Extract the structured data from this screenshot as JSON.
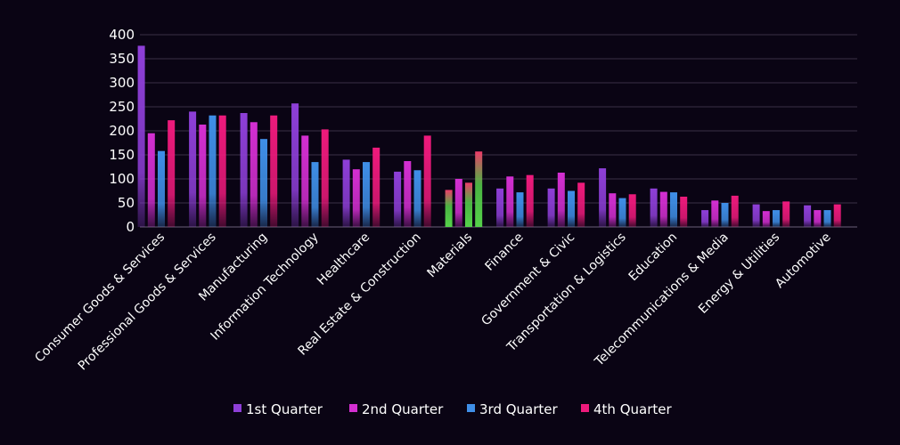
{
  "chart_data": {
    "type": "bar",
    "title": "",
    "xlabel": "",
    "ylabel": "",
    "ylim": [
      0,
      400
    ],
    "yticks": [
      0,
      50,
      100,
      150,
      200,
      250,
      300,
      350,
      400
    ],
    "grid": true,
    "legend_position": "bottom-center",
    "categories": [
      "Consumer Goods & Services",
      "Professional Goods & Services",
      "Manufacturing",
      "Information Technology",
      "Healthcare",
      "Real Estate & Construction",
      "Materials",
      "Finance",
      "Government & Civic",
      "Transportation & Logistics",
      "Education",
      "Telecommunications & Media",
      "Energy & Utilities",
      "Automotive"
    ],
    "series": [
      {
        "name": "1st Quarter",
        "color": "#8e3fd8",
        "values": [
          377,
          240,
          237,
          257,
          140,
          115,
          77,
          80,
          80,
          122,
          80,
          35,
          47,
          45
        ]
      },
      {
        "name": "2nd Quarter",
        "color": "#d42fd2",
        "values": [
          195,
          213,
          218,
          190,
          120,
          137,
          100,
          105,
          113,
          70,
          73,
          55,
          33,
          35
        ]
      },
      {
        "name": "3rd Quarter",
        "color": "#3f8fe8",
        "values": [
          158,
          232,
          183,
          135,
          135,
          118,
          92,
          72,
          75,
          60,
          72,
          50,
          35,
          35
        ]
      },
      {
        "name": "4th Quarter",
        "color": "#ee1a7c",
        "values": [
          222,
          232,
          232,
          203,
          165,
          190,
          157,
          108,
          92,
          68,
          63,
          65,
          53,
          47
        ]
      }
    ],
    "highlight_category": "Materials",
    "highlight_colors": [
      "#55d24a",
      "#ee3a6a"
    ]
  }
}
